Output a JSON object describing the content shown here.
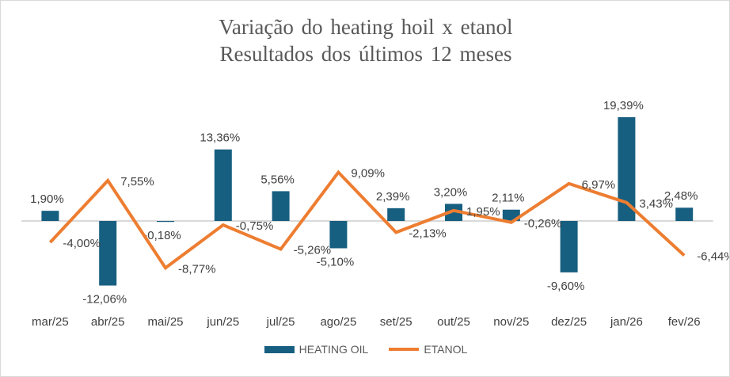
{
  "chart_data": {
    "type": "bar+line",
    "title": "Variação do heating hoil x etanol",
    "subtitle": "Resultados dos últimos 12 meses",
    "categories": [
      "mar/25",
      "abr/25",
      "mai/25",
      "jun/25",
      "jul/25",
      "ago/25",
      "set/25",
      "out/25",
      "nov/25",
      "dez/25",
      "jan/26",
      "fev/26"
    ],
    "series": [
      {
        "name": "HEATING OIL",
        "type": "bar",
        "color": "#175F80",
        "values": [
          1.9,
          -12.06,
          -0.18,
          13.36,
          5.56,
          -5.1,
          2.39,
          3.2,
          2.11,
          -9.6,
          19.39,
          2.48
        ],
        "labels": [
          "1,90%",
          "-12,06%",
          "-0,18%",
          "13,36%",
          "5,56%",
          "-5,10%",
          "2,39%",
          "3,20%",
          "2,11%",
          "-9,60%",
          "19,39%",
          "2,48%"
        ]
      },
      {
        "name": "ETANOL",
        "type": "line",
        "color": "#ED7D31",
        "values": [
          -4.0,
          7.55,
          -8.77,
          -0.75,
          -5.26,
          9.09,
          -2.13,
          1.95,
          -0.26,
          6.97,
          3.43,
          -6.44
        ],
        "labels": [
          "-4,00%",
          "7,55%",
          "-8,77%",
          "-0,75%",
          "-5,26%",
          "9,09%",
          "-2,13%",
          "1,95%",
          "-0,26%",
          "6,97%",
          "3,43%",
          "-6,44%"
        ]
      }
    ],
    "ylim": [
      -15,
      22
    ],
    "grid": false,
    "legend_position": "bottom"
  }
}
